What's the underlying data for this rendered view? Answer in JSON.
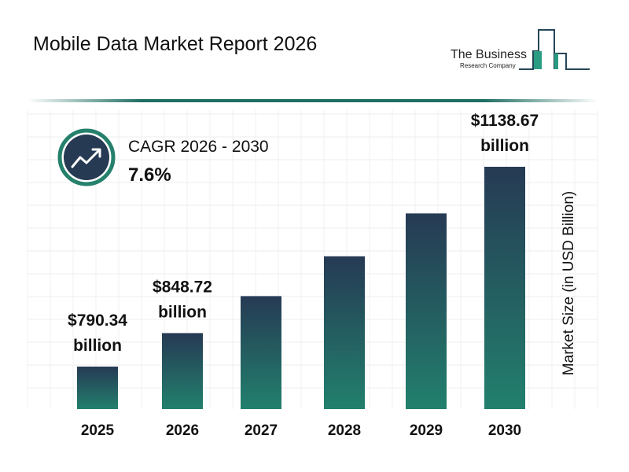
{
  "header": {
    "title": "Mobile Data Market Report 2026"
  },
  "logo": {
    "line1": "The Business",
    "line2": "Research Company"
  },
  "cagr": {
    "label": "CAGR 2026 - 2030",
    "value": "7.6%",
    "icon": "trending-up-icon"
  },
  "colors": {
    "bar_top": "#263a54",
    "bar_bottom": "#22806d",
    "accent": "#1f6e62"
  },
  "chart_data": {
    "type": "bar",
    "categories": [
      "2025",
      "2026",
      "2027",
      "2028",
      "2029",
      "2030"
    ],
    "values": [
      790.34,
      848.72,
      913.2,
      982.6,
      1057.3,
      1138.67
    ],
    "data_labels": [
      {
        "index": 0,
        "line1": "$790.34",
        "line2": "billion"
      },
      {
        "index": 1,
        "line1": "$848.72",
        "line2": "billion"
      },
      {
        "index": 5,
        "line1": "$1138.67",
        "line2": "billion"
      }
    ],
    "title": "",
    "xlabel": "",
    "ylabel": "Market Size (in USD Billion)",
    "grid": true
  }
}
